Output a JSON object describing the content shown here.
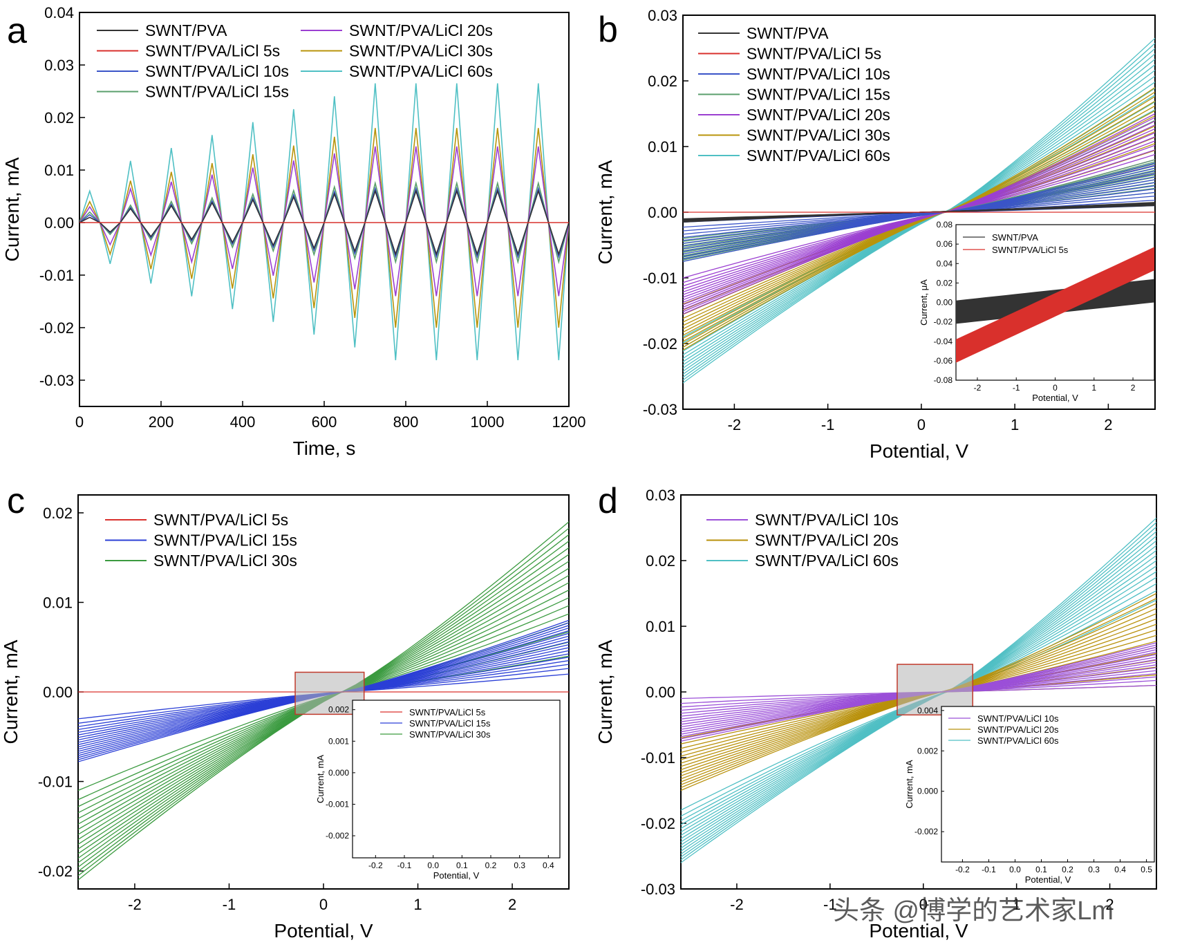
{
  "colors": {
    "pva": "#333333",
    "licl5": "#d9302c",
    "licl10": "#3a54c8",
    "licl15": "#5a9f6c",
    "licl20": "#9b3fd1",
    "licl30": "#b8940b",
    "licl60": "#4fc0c4",
    "c15": "#2b3fd6",
    "c30": "#3a9a3f",
    "d10": "#9b4fd8",
    "d20": "#b8900a",
    "d60": "#4fbfc4"
  },
  "chart_data": [
    {
      "panel": "a",
      "type": "line",
      "xlabel": "Time, s",
      "ylabel": "Current, mA",
      "xlim": [
        0,
        1200
      ],
      "ylim": [
        -0.035,
        0.04
      ],
      "xticks": [
        "0",
        "200",
        "400",
        "600",
        "800",
        "1000",
        "1200"
      ],
      "yticks": [
        "-0.03",
        "-0.02",
        "-0.01",
        "0.00",
        "0.01",
        "0.02",
        "0.03",
        "0.04"
      ],
      "legend_position": "top",
      "legend": [
        {
          "name": "SWNT/PVA",
          "color_key": "pva"
        },
        {
          "name": "SWNT/PVA/LiCl 5s",
          "color_key": "licl5"
        },
        {
          "name": "SWNT/PVA/LiCl 10s",
          "color_key": "licl10"
        },
        {
          "name": "SWNT/PVA/LiCl 15s",
          "color_key": "licl15"
        },
        {
          "name": "SWNT/PVA/LiCl 20s",
          "color_key": "licl20"
        },
        {
          "name": "SWNT/PVA/LiCl 30s",
          "color_key": "licl30"
        },
        {
          "name": "SWNT/PVA/LiCl 60s",
          "color_key": "licl60"
        }
      ],
      "cycle_period_s": 100,
      "series_peaks": [
        {
          "name": "SWNT/PVA/LiCl 60s",
          "color_key": "licl60",
          "peak_max": 0.0265,
          "peak_min": -0.0262,
          "first_peak": 0.006
        },
        {
          "name": "SWNT/PVA/LiCl 30s",
          "color_key": "licl30",
          "peak_max": 0.018,
          "peak_min": -0.02,
          "first_peak": 0.004
        },
        {
          "name": "SWNT/PVA/LiCl 20s",
          "color_key": "licl20",
          "peak_max": 0.0145,
          "peak_min": -0.014,
          "first_peak": 0.003
        },
        {
          "name": "SWNT/PVA/LiCl 15s",
          "color_key": "licl15",
          "peak_max": 0.0075,
          "peak_min": -0.0075,
          "first_peak": 0.002
        },
        {
          "name": "SWNT/PVA/LiCl 10s",
          "color_key": "licl10",
          "peak_max": 0.0065,
          "peak_min": -0.0065,
          "first_peak": 0.0015
        },
        {
          "name": "SWNT/PVA",
          "color_key": "pva",
          "peak_max": 0.006,
          "peak_min": -0.006,
          "first_peak": 0.001
        },
        {
          "name": "SWNT/PVA/LiCl 5s",
          "color_key": "licl5",
          "peak_max": 0.0,
          "peak_min": 0.0,
          "first_peak": 0.0
        }
      ]
    },
    {
      "panel": "b",
      "type": "line",
      "xlabel": "Potential, V",
      "ylabel": "Current, mA",
      "xlim": [
        -2.55,
        2.5
      ],
      "ylim": [
        -0.03,
        0.03
      ],
      "xticks": [
        "-2",
        "-1",
        "0",
        "1",
        "2"
      ],
      "yticks": [
        "-0.03",
        "-0.02",
        "-0.01",
        "0.00",
        "0.01",
        "0.02",
        "0.03"
      ],
      "legend_position": "top-left",
      "legend": [
        {
          "name": "SWNT/PVA",
          "color_key": "pva"
        },
        {
          "name": "SWNT/PVA/LiCl 5s",
          "color_key": "licl5"
        },
        {
          "name": "SWNT/PVA/LiCl 10s",
          "color_key": "licl10"
        },
        {
          "name": "SWNT/PVA/LiCl 15s",
          "color_key": "licl15"
        },
        {
          "name": "SWNT/PVA/LiCl 20s",
          "color_key": "licl20"
        },
        {
          "name": "SWNT/PVA/LiCl 30s",
          "color_key": "licl30"
        },
        {
          "name": "SWNT/PVA/LiCl 60s",
          "color_key": "licl60"
        }
      ],
      "bundles": [
        {
          "color_key": "licl60",
          "x_cross": 0.25,
          "y_left": [
            -0.019,
            -0.026
          ],
          "y_right": [
            0.014,
            0.0265
          ]
        },
        {
          "color_key": "licl30",
          "x_cross": 0.25,
          "y_left": [
            -0.014,
            -0.021
          ],
          "y_right": [
            0.008,
            0.019
          ]
        },
        {
          "color_key": "licl20",
          "x_cross": 0.25,
          "y_left": [
            -0.01,
            -0.0155
          ],
          "y_right": [
            0.006,
            0.015
          ]
        },
        {
          "color_key": "licl15",
          "x_cross": 0.25,
          "y_left": [
            -0.004,
            -0.0075
          ],
          "y_right": [
            0.003,
            0.008
          ]
        },
        {
          "color_key": "licl10",
          "x_cross": 0.25,
          "y_left": [
            -0.0015,
            -0.0075
          ],
          "y_right": [
            0.001,
            0.0075
          ]
        },
        {
          "color_key": "pva",
          "x_cross": 0.0,
          "y_left": [
            -0.001,
            -0.0015
          ],
          "y_right": [
            0.001,
            0.0015
          ]
        },
        {
          "color_key": "licl5",
          "x_cross": 0.0,
          "y_left": [
            0.0,
            0.0
          ],
          "y_right": [
            0.0,
            0.0
          ]
        }
      ],
      "inset": {
        "xlabel": "Potential, V",
        "ylabel": "Current, μA",
        "xlim": [
          -2.55,
          2.55
        ],
        "ylim": [
          -0.08,
          0.08
        ],
        "xticks": [
          "-2",
          "-1",
          "0",
          "1",
          "2"
        ],
        "yticks": [
          "-0.08",
          "-0.06",
          "-0.04",
          "-0.02",
          "0.00",
          "0.02",
          "0.04",
          "0.06",
          "0.08"
        ],
        "legend": [
          {
            "name": "SWNT/PVA",
            "color_key": "pva"
          },
          {
            "name": "SWNT/PVA/LiCl 5s",
            "color_key": "licl5"
          }
        ],
        "bands": [
          {
            "color_key": "pva",
            "y_left": -0.01,
            "y_right": 0.012,
            "half_width": 0.012
          },
          {
            "color_key": "licl5",
            "y_left": -0.05,
            "y_right": 0.045,
            "half_width": 0.012
          }
        ]
      }
    },
    {
      "panel": "c",
      "type": "line",
      "xlabel": "Potential, V",
      "ylabel": "Current, mA",
      "xlim": [
        -2.6,
        2.6
      ],
      "ylim": [
        -0.022,
        0.022
      ],
      "xticks": [
        "-2",
        "-1",
        "0",
        "1",
        "2"
      ],
      "yticks": [
        "-0.02",
        "-0.01",
        "0.00",
        "0.01",
        "0.02"
      ],
      "legend_position": "top-left",
      "legend": [
        {
          "name": "SWNT/PVA/LiCl 5s",
          "color_key": "licl5"
        },
        {
          "name": "SWNT/PVA/LiCl 15s",
          "color_key": "c15"
        },
        {
          "name": "SWNT/PVA/LiCl 30s",
          "color_key": "c30"
        }
      ],
      "bundles": [
        {
          "color_key": "c30",
          "x_cross": 0.2,
          "y_left": [
            -0.011,
            -0.021
          ],
          "y_right": [
            0.004,
            0.019
          ]
        },
        {
          "color_key": "c15",
          "x_cross": 0.2,
          "y_left": [
            -0.003,
            -0.0078
          ],
          "y_right": [
            0.002,
            0.008
          ]
        },
        {
          "color_key": "licl5",
          "x_cross": 0.0,
          "y_left": [
            0.0,
            0.0
          ],
          "y_right": [
            0.0,
            0.0
          ]
        }
      ],
      "zoom_box": {
        "x": [
          -0.3,
          0.43
        ],
        "y": [
          -0.0025,
          0.0022
        ]
      },
      "inset": {
        "xlabel": "Potential, V",
        "ylabel": "Current, mA",
        "xlim": [
          -0.28,
          0.44
        ],
        "ylim": [
          -0.0027,
          0.0023
        ],
        "xticks": [
          "-0.2",
          "-0.1",
          "0.0",
          "0.1",
          "0.2",
          "0.3",
          "0.4"
        ],
        "yticks": [
          "-0.002",
          "-0.001",
          "0.000",
          "0.001",
          "0.002"
        ],
        "legend": [
          {
            "name": "SWNT/PVA/LiCl 5s",
            "color_key": "licl5"
          },
          {
            "name": "SWNT/PVA/LiCl 15s",
            "color_key": "c15"
          },
          {
            "name": "SWNT/PVA/LiCl 30s",
            "color_key": "c30"
          }
        ]
      }
    },
    {
      "panel": "d",
      "type": "line",
      "xlabel": "Potential, V",
      "ylabel": "Current, mA",
      "xlim": [
        -2.6,
        2.5
      ],
      "ylim": [
        -0.03,
        0.03
      ],
      "xticks": [
        "-2",
        "-1",
        "0",
        "1",
        "2"
      ],
      "yticks": [
        "-0.03",
        "-0.02",
        "-0.01",
        "0.00",
        "0.01",
        "0.02",
        "0.03"
      ],
      "legend_position": "top-left",
      "legend": [
        {
          "name": "SWNT/PVA/LiCl 10s",
          "color_key": "d10"
        },
        {
          "name": "SWNT/PVA/LiCl 20s",
          "color_key": "d20"
        },
        {
          "name": "SWNT/PVA/LiCl 60s",
          "color_key": "d60"
        }
      ],
      "bundles": [
        {
          "color_key": "d60",
          "x_cross": 0.25,
          "y_left": [
            -0.018,
            -0.026
          ],
          "y_right": [
            0.014,
            0.0265
          ]
        },
        {
          "color_key": "d20",
          "x_cross": 0.2,
          "y_left": [
            -0.007,
            -0.015
          ],
          "y_right": [
            0.001,
            0.015
          ]
        },
        {
          "color_key": "d10",
          "x_cross": 0.2,
          "y_left": [
            -0.001,
            -0.0075
          ],
          "y_right": [
            0.001,
            0.0075
          ]
        }
      ],
      "zoom_box": {
        "x": [
          -0.28,
          0.53
        ],
        "y": [
          -0.0035,
          0.0042
        ]
      },
      "inset": {
        "xlabel": "Potential, V",
        "ylabel": "Current, mA",
        "xlim": [
          -0.28,
          0.53
        ],
        "ylim": [
          -0.0035,
          0.0042
        ],
        "xticks": [
          "-0.2",
          "-0.1",
          "0.0",
          "0.1",
          "0.2",
          "0.3",
          "0.4",
          "0.5"
        ],
        "yticks": [
          "-0.002",
          "0.000",
          "0.002",
          "0.004"
        ],
        "legend": [
          {
            "name": "SWNT/PVA/LiCl 10s",
            "color_key": "d10"
          },
          {
            "name": "SWNT/PVA/LiCl 20s",
            "color_key": "d20"
          },
          {
            "name": "SWNT/PVA/LiCl 60s",
            "color_key": "d60"
          }
        ]
      }
    }
  ],
  "watermark": "头条 @博学的艺术家Lm"
}
